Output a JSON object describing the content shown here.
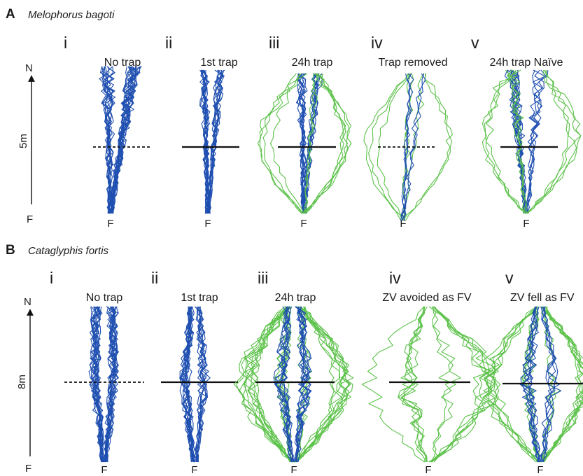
{
  "colors": {
    "blue": "#1f4fb0",
    "green": "#5cc24a",
    "black": "#111111"
  },
  "rows": [
    {
      "letter": "A",
      "species": "Melophorus bagoti",
      "north_label": "N",
      "feeder_label": "F",
      "distance_label": "5m",
      "panels": [
        {
          "roman": "i",
          "title": "No trap",
          "feeder": "F",
          "barrier": "dashed",
          "colors": [
            "blue"
          ]
        },
        {
          "roman": "ii",
          "title": "1st trap",
          "feeder": "F",
          "barrier": "solid",
          "colors": [
            "blue"
          ]
        },
        {
          "roman": "iii",
          "title": "24h trap",
          "feeder": "F",
          "barrier": "solid",
          "colors": [
            "blue",
            "green"
          ]
        },
        {
          "roman": "iv",
          "title": "Trap removed",
          "feeder": "F",
          "barrier": "dashed",
          "colors": [
            "green",
            "blue"
          ]
        },
        {
          "roman": "v",
          "title": "24h trap Naïve",
          "feeder": "F",
          "barrier": "solid",
          "colors": [
            "blue",
            "green"
          ]
        }
      ]
    },
    {
      "letter": "B",
      "species": "Cataglyphis fortis",
      "north_label": "N",
      "feeder_label": "F",
      "distance_label": "8m",
      "panels": [
        {
          "roman": "i",
          "title": "No trap",
          "feeder": "F",
          "barrier": "dashed",
          "colors": [
            "blue"
          ]
        },
        {
          "roman": "ii",
          "title": "1st trap",
          "feeder": "F",
          "barrier": "solid",
          "colors": [
            "blue"
          ]
        },
        {
          "roman": "iii",
          "title": "24h trap",
          "feeder": "F",
          "barrier": "solid",
          "colors": [
            "green",
            "blue"
          ]
        },
        {
          "roman": "iv",
          "title": "ZV avoided as FV",
          "feeder": "F",
          "barrier": "solid",
          "colors": [
            "green"
          ]
        },
        {
          "roman": "v",
          "title": "ZV fell as FV",
          "feeder": "F",
          "barrier": "solid",
          "colors": [
            "green",
            "blue"
          ]
        }
      ]
    }
  ]
}
